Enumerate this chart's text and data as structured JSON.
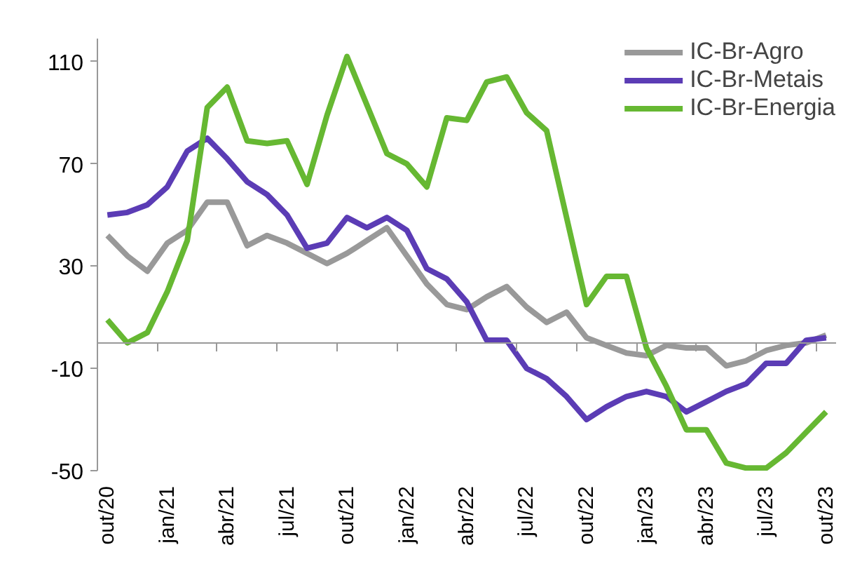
{
  "chart_data": {
    "type": "line",
    "categories": [
      "out/20",
      null,
      null,
      "jan/21",
      null,
      null,
      "abr/21",
      null,
      null,
      "jul/21",
      null,
      null,
      "out/21",
      null,
      null,
      "jan/22",
      null,
      null,
      "abr/22",
      null,
      null,
      "jul/22",
      null,
      null,
      "out/22",
      null,
      null,
      "jan/23",
      null,
      null,
      "abr/23",
      null,
      null,
      "jul/23",
      null,
      null,
      "out/23"
    ],
    "series": [
      {
        "name": "IC-Br-Agro",
        "color": "#999999",
        "values": [
          42,
          34,
          28,
          39,
          44,
          55,
          55,
          38,
          42,
          39,
          35,
          31,
          35,
          40,
          45,
          34,
          23,
          15,
          13,
          18,
          22,
          14,
          8,
          12,
          2,
          -1,
          -4,
          -5,
          -1,
          -2,
          -2,
          -9,
          -7,
          -3,
          -1,
          0,
          3
        ]
      },
      {
        "name": "IC-Br-Metais",
        "color": "#5b3cb5",
        "values": [
          50,
          51,
          54,
          61,
          75,
          80,
          72,
          63,
          58,
          50,
          37,
          39,
          49,
          45,
          49,
          44,
          29,
          25,
          16,
          1,
          1,
          -10,
          -14,
          -21,
          -30,
          -25,
          -21,
          -19,
          -21,
          -27,
          -23,
          -19,
          -16,
          -8,
          -8,
          1,
          2
        ]
      },
      {
        "name": "IC-Br-Energia",
        "color": "#66b832",
        "values": [
          9,
          0,
          4,
          20,
          40,
          92,
          100,
          79,
          78,
          79,
          62,
          89,
          112,
          93,
          74,
          70,
          61,
          88,
          87,
          102,
          104,
          90,
          83,
          49,
          15,
          26,
          26,
          -2,
          -17,
          -34,
          -34,
          -47,
          -49,
          -49,
          -43,
          -35,
          -27
        ]
      }
    ],
    "ylim": [
      -50,
      119
    ],
    "yticks": [
      -50,
      -10,
      30,
      70,
      110
    ],
    "grid": false,
    "legend": "top right",
    "marker": "none",
    "line_style": "solid"
  }
}
